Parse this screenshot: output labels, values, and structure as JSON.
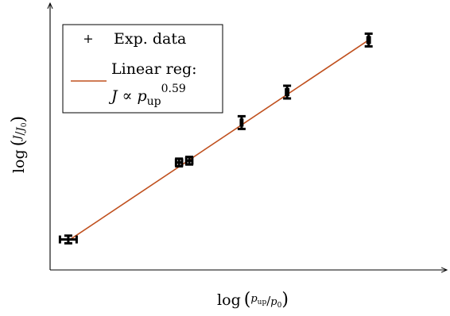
{
  "chart_data": {
    "type": "scatter",
    "xlabel": {
      "base": "log",
      "num": "p",
      "num_sub": "up",
      "den": "p",
      "den_sub": "0"
    },
    "ylabel": {
      "base": "log",
      "num": "J",
      "den": "J",
      "den_sub": "0"
    },
    "x_ticks_shown": false,
    "y_ticks_shown": false,
    "grid": false,
    "legend_position": "top-left",
    "legend": {
      "data_label": "Exp. data",
      "fit_label_line1": "Linear reg:",
      "fit_formula": {
        "lhs": "J",
        "rel": "∝",
        "var": "p",
        "sub": "up",
        "exp": "0.59"
      }
    },
    "xlim": [
      0,
      10
    ],
    "ylim": [
      0,
      10
    ],
    "series": [
      {
        "kind": "errorbar-points",
        "points": [
          {
            "x": 0.48,
            "y": 1.2,
            "xerr": 0.22,
            "yerr": 0.15
          },
          {
            "x": 3.4,
            "y": 4.23,
            "xerr": 0.08,
            "yerr": 0.15
          },
          {
            "x": 3.67,
            "y": 4.3,
            "xerr": 0.08,
            "yerr": 0.15
          },
          {
            "x": 5.05,
            "y": 5.8,
            "xerr": 0.02,
            "yerr": 0.25
          },
          {
            "x": 6.25,
            "y": 7.0,
            "xerr": 0.03,
            "yerr": 0.25
          },
          {
            "x": 8.4,
            "y": 9.05,
            "xerr": 0.03,
            "yerr": 0.25
          }
        ]
      },
      {
        "kind": "fit-line",
        "color": "#c0501e",
        "x": [
          0.48,
          8.4
        ],
        "y": [
          1.15,
          9.05
        ]
      }
    ]
  }
}
